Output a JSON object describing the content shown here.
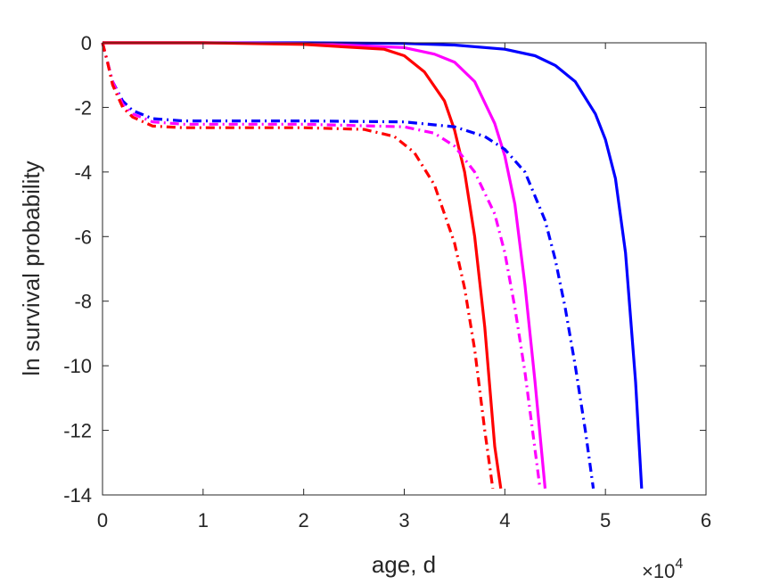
{
  "chart_data": {
    "type": "line",
    "title": "",
    "xlabel": "age, d",
    "ylabel": "ln survival probability",
    "x_multiplier": "×10",
    "x_multiplier_exp": "4",
    "xlim": [
      0,
      6
    ],
    "ylim": [
      -14,
      0
    ],
    "xticks": [
      0,
      1,
      2,
      3,
      4,
      5,
      6
    ],
    "yticks": [
      0,
      -2,
      -4,
      -6,
      -8,
      -10,
      -12,
      -14
    ],
    "grid": false,
    "x_units_note": "x values in units of 10^4 days",
    "series": [
      {
        "color": "#0000ff",
        "style": "solid",
        "x": [
          0.0,
          1.0,
          2.0,
          3.0,
          3.5,
          4.0,
          4.3,
          4.5,
          4.7,
          4.9,
          5.0,
          5.1,
          5.2,
          5.3,
          5.36
        ],
        "y": [
          0.0,
          0.0,
          0.0,
          -0.02,
          -0.07,
          -0.2,
          -0.4,
          -0.7,
          -1.2,
          -2.2,
          -3.0,
          -4.2,
          -6.5,
          -10.5,
          -13.8
        ]
      },
      {
        "color": "#ff00ff",
        "style": "solid",
        "x": [
          0.0,
          1.0,
          2.0,
          3.0,
          3.3,
          3.5,
          3.7,
          3.9,
          4.0,
          4.1,
          4.2,
          4.3,
          4.4
        ],
        "y": [
          0.0,
          0.0,
          -0.02,
          -0.15,
          -0.35,
          -0.6,
          -1.2,
          -2.5,
          -3.5,
          -5.0,
          -7.5,
          -10.5,
          -13.8
        ]
      },
      {
        "color": "#ff0000",
        "style": "solid",
        "x": [
          0.0,
          1.0,
          2.0,
          2.8,
          3.0,
          3.2,
          3.4,
          3.5,
          3.6,
          3.7,
          3.8,
          3.9,
          3.96
        ],
        "y": [
          0.0,
          0.0,
          -0.05,
          -0.2,
          -0.4,
          -0.9,
          -1.8,
          -2.7,
          -4.0,
          -6.0,
          -8.8,
          -12.5,
          -13.8
        ]
      },
      {
        "color": "#0000ff",
        "style": "dashdot",
        "x": [
          0.0,
          0.05,
          0.1,
          0.2,
          0.3,
          0.5,
          0.8,
          1.0,
          2.0,
          3.0,
          3.5,
          3.8,
          4.0,
          4.2,
          4.4,
          4.5,
          4.6,
          4.7,
          4.8,
          4.88
        ],
        "y": [
          0.0,
          -0.6,
          -1.2,
          -1.8,
          -2.1,
          -2.35,
          -2.42,
          -2.42,
          -2.42,
          -2.45,
          -2.6,
          -2.9,
          -3.3,
          -4.0,
          -5.5,
          -6.7,
          -8.2,
          -10.0,
          -12.0,
          -13.8
        ]
      },
      {
        "color": "#ff00ff",
        "style": "dashdot",
        "x": [
          0.0,
          0.05,
          0.1,
          0.2,
          0.3,
          0.5,
          0.8,
          1.0,
          2.0,
          3.0,
          3.3,
          3.5,
          3.7,
          3.9,
          4.0,
          4.1,
          4.2,
          4.3,
          4.35
        ],
        "y": [
          0.0,
          -0.6,
          -1.2,
          -1.9,
          -2.2,
          -2.45,
          -2.52,
          -2.52,
          -2.52,
          -2.6,
          -2.8,
          -3.2,
          -4.0,
          -5.3,
          -6.5,
          -8.2,
          -10.2,
          -12.6,
          -13.8
        ]
      },
      {
        "color": "#ff0000",
        "style": "dashdot",
        "x": [
          0.0,
          0.05,
          0.1,
          0.2,
          0.3,
          0.5,
          0.8,
          1.0,
          2.0,
          2.6,
          2.9,
          3.1,
          3.3,
          3.5,
          3.6,
          3.7,
          3.8,
          3.88
        ],
        "y": [
          0.0,
          -0.6,
          -1.3,
          -2.0,
          -2.3,
          -2.58,
          -2.63,
          -2.63,
          -2.63,
          -2.68,
          -2.9,
          -3.4,
          -4.4,
          -6.2,
          -7.6,
          -9.5,
          -12.0,
          -13.8
        ]
      }
    ]
  }
}
